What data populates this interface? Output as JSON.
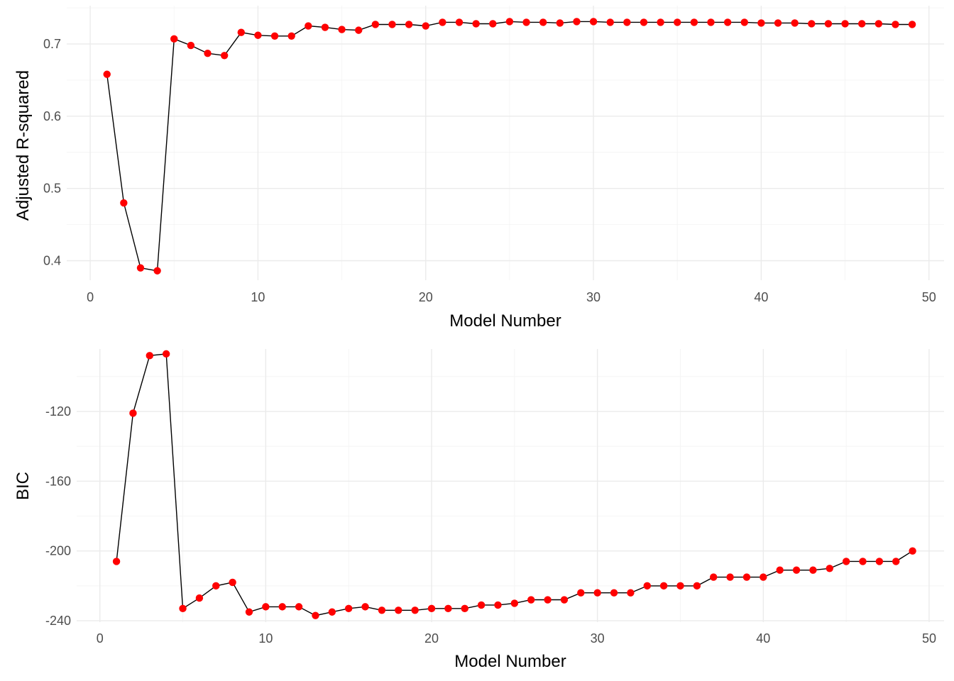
{
  "chart_data": [
    {
      "type": "line",
      "xlabel": "Model Number",
      "ylabel": "Adjusted R-squared",
      "xlim": [
        -1.4,
        50.9
      ],
      "ylim": [
        0.373,
        0.753
      ],
      "x_ticks": [
        0,
        10,
        20,
        30,
        40,
        50
      ],
      "y_ticks": [
        0.4,
        0.5,
        0.6,
        0.7
      ],
      "x_tick_labels": [
        "0",
        "10",
        "20",
        "30",
        "40",
        "50"
      ],
      "y_tick_labels": [
        "0.4",
        "0.5",
        "0.6",
        "0.7"
      ],
      "grid": true,
      "point_color": "#ff0000",
      "line_color": "#000000",
      "x": [
        1,
        2,
        3,
        4,
        5,
        6,
        7,
        8,
        9,
        10,
        11,
        12,
        13,
        14,
        15,
        16,
        17,
        18,
        19,
        20,
        21,
        22,
        23,
        24,
        25,
        26,
        27,
        28,
        29,
        30,
        31,
        32,
        33,
        34,
        35,
        36,
        37,
        38,
        39,
        40,
        41,
        42,
        43,
        44,
        45,
        46,
        47,
        48,
        49
      ],
      "y": [
        0.658,
        0.48,
        0.39,
        0.386,
        0.707,
        0.698,
        0.687,
        0.684,
        0.716,
        0.712,
        0.711,
        0.711,
        0.725,
        0.723,
        0.72,
        0.719,
        0.727,
        0.727,
        0.727,
        0.725,
        0.73,
        0.73,
        0.728,
        0.728,
        0.731,
        0.73,
        0.73,
        0.729,
        0.731,
        0.731,
        0.73,
        0.73,
        0.73,
        0.73,
        0.73,
        0.73,
        0.73,
        0.73,
        0.73,
        0.729,
        0.729,
        0.729,
        0.728,
        0.728,
        0.728,
        0.728,
        0.728,
        0.727,
        0.727
      ]
    },
    {
      "type": "line",
      "xlabel": "Model Number",
      "ylabel": "BIC",
      "xlim": [
        -1.4,
        50.9
      ],
      "ylim": [
        -240.8,
        -84.2
      ],
      "x_ticks": [
        0,
        10,
        20,
        30,
        40,
        50
      ],
      "y_ticks": [
        -240,
        -200,
        -160,
        -120
      ],
      "x_tick_labels": [
        "0",
        "10",
        "20",
        "30",
        "40",
        "50"
      ],
      "y_tick_labels": [
        "-240",
        "-200",
        "-160",
        "-120"
      ],
      "grid": true,
      "point_color": "#ff0000",
      "line_color": "#000000",
      "x": [
        1,
        2,
        3,
        4,
        5,
        6,
        7,
        8,
        9,
        10,
        11,
        12,
        13,
        14,
        15,
        16,
        17,
        18,
        19,
        20,
        21,
        22,
        23,
        24,
        25,
        26,
        27,
        28,
        29,
        30,
        31,
        32,
        33,
        34,
        35,
        36,
        37,
        38,
        39,
        40,
        41,
        42,
        43,
        44,
        45,
        46,
        47,
        48,
        49
      ],
      "y": [
        -206,
        -121,
        -88,
        -87,
        -233,
        -227,
        -220,
        -218,
        -235,
        -232,
        -232,
        -232,
        -237,
        -235,
        -233,
        -232,
        -234,
        -234,
        -234,
        -233,
        -233,
        -233,
        -231,
        -231,
        -230,
        -228,
        -228,
        -228,
        -224,
        -224,
        -224,
        -224,
        -220,
        -220,
        -220,
        -220,
        -215,
        -215,
        -215,
        -215,
        -211,
        -211,
        -211,
        -210,
        -206,
        -206,
        -206,
        -206,
        -200
      ]
    }
  ]
}
